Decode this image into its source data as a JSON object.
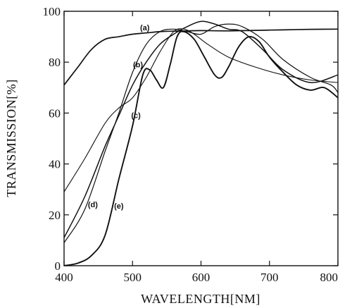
{
  "chart_data": {
    "type": "line",
    "title": "",
    "xlabel": "WAVELENGTH[NM]",
    "ylabel": "TRANSMISSION[%]",
    "xlim": [
      400,
      800
    ],
    "ylim": [
      0,
      100
    ],
    "grid": false,
    "x_ticks": [
      400,
      500,
      600,
      700,
      800
    ],
    "y_ticks": [
      0,
      20,
      40,
      60,
      80,
      100
    ],
    "x_tick_labels": [
      "400",
      "500",
      "600",
      "700",
      "800"
    ],
    "y_tick_labels": [
      "0",
      "20",
      "40",
      "60",
      "80",
      "100"
    ],
    "series": [
      {
        "name": "(a)",
        "points": [
          [
            400,
            71
          ],
          [
            420,
            78
          ],
          [
            440,
            85
          ],
          [
            460,
            89
          ],
          [
            480,
            90
          ],
          [
            500,
            91
          ],
          [
            520,
            91.5
          ],
          [
            540,
            92
          ],
          [
            560,
            92.2
          ],
          [
            580,
            92.3
          ],
          [
            600,
            92.4
          ],
          [
            640,
            92.3
          ],
          [
            680,
            92.5
          ],
          [
            720,
            92.7
          ],
          [
            760,
            92.9
          ],
          [
            800,
            93
          ]
        ]
      },
      {
        "name": "(b)",
        "points": [
          [
            400,
            29
          ],
          [
            430,
            42
          ],
          [
            460,
            56
          ],
          [
            480,
            62
          ],
          [
            500,
            66
          ],
          [
            520,
            74
          ],
          [
            540,
            84
          ],
          [
            560,
            92
          ],
          [
            575,
            93
          ],
          [
            590,
            91
          ],
          [
            610,
            87
          ],
          [
            640,
            82
          ],
          [
            680,
            78
          ],
          [
            720,
            75
          ],
          [
            760,
            73
          ],
          [
            800,
            72
          ]
        ]
      },
      {
        "name": "(c)",
        "points": [
          [
            400,
            11
          ],
          [
            430,
            27
          ],
          [
            460,
            47
          ],
          [
            480,
            59
          ],
          [
            500,
            71
          ],
          [
            520,
            80
          ],
          [
            540,
            87
          ],
          [
            560,
            91
          ],
          [
            580,
            94
          ],
          [
            600,
            96
          ],
          [
            620,
            95
          ],
          [
            640,
            93
          ],
          [
            660,
            92
          ],
          [
            690,
            85
          ],
          [
            720,
            77
          ],
          [
            760,
            72
          ],
          [
            800,
            75
          ]
        ]
      },
      {
        "name": "(d)",
        "points": [
          [
            400,
            9
          ],
          [
            430,
            22
          ],
          [
            460,
            45
          ],
          [
            480,
            60
          ],
          [
            500,
            76
          ],
          [
            520,
            87
          ],
          [
            540,
            92
          ],
          [
            560,
            93
          ],
          [
            580,
            92
          ],
          [
            600,
            91
          ],
          [
            620,
            94
          ],
          [
            640,
            95
          ],
          [
            660,
            94
          ],
          [
            690,
            89
          ],
          [
            720,
            81
          ],
          [
            760,
            74
          ],
          [
            790,
            71
          ],
          [
            800,
            68
          ]
        ]
      },
      {
        "name": "(e)",
        "points": [
          [
            400,
            0
          ],
          [
            420,
            1
          ],
          [
            440,
            4
          ],
          [
            460,
            12
          ],
          [
            480,
            34
          ],
          [
            500,
            55
          ],
          [
            515,
            75
          ],
          [
            525,
            77
          ],
          [
            535,
            73
          ],
          [
            545,
            70
          ],
          [
            555,
            79
          ],
          [
            565,
            90
          ],
          [
            575,
            92
          ],
          [
            590,
            89
          ],
          [
            605,
            82
          ],
          [
            620,
            75
          ],
          [
            630,
            74
          ],
          [
            640,
            78
          ],
          [
            655,
            86
          ],
          [
            670,
            90
          ],
          [
            685,
            88
          ],
          [
            700,
            82
          ],
          [
            720,
            76
          ],
          [
            740,
            71
          ],
          [
            760,
            69
          ],
          [
            780,
            70
          ],
          [
            800,
            66
          ]
        ]
      }
    ]
  }
}
